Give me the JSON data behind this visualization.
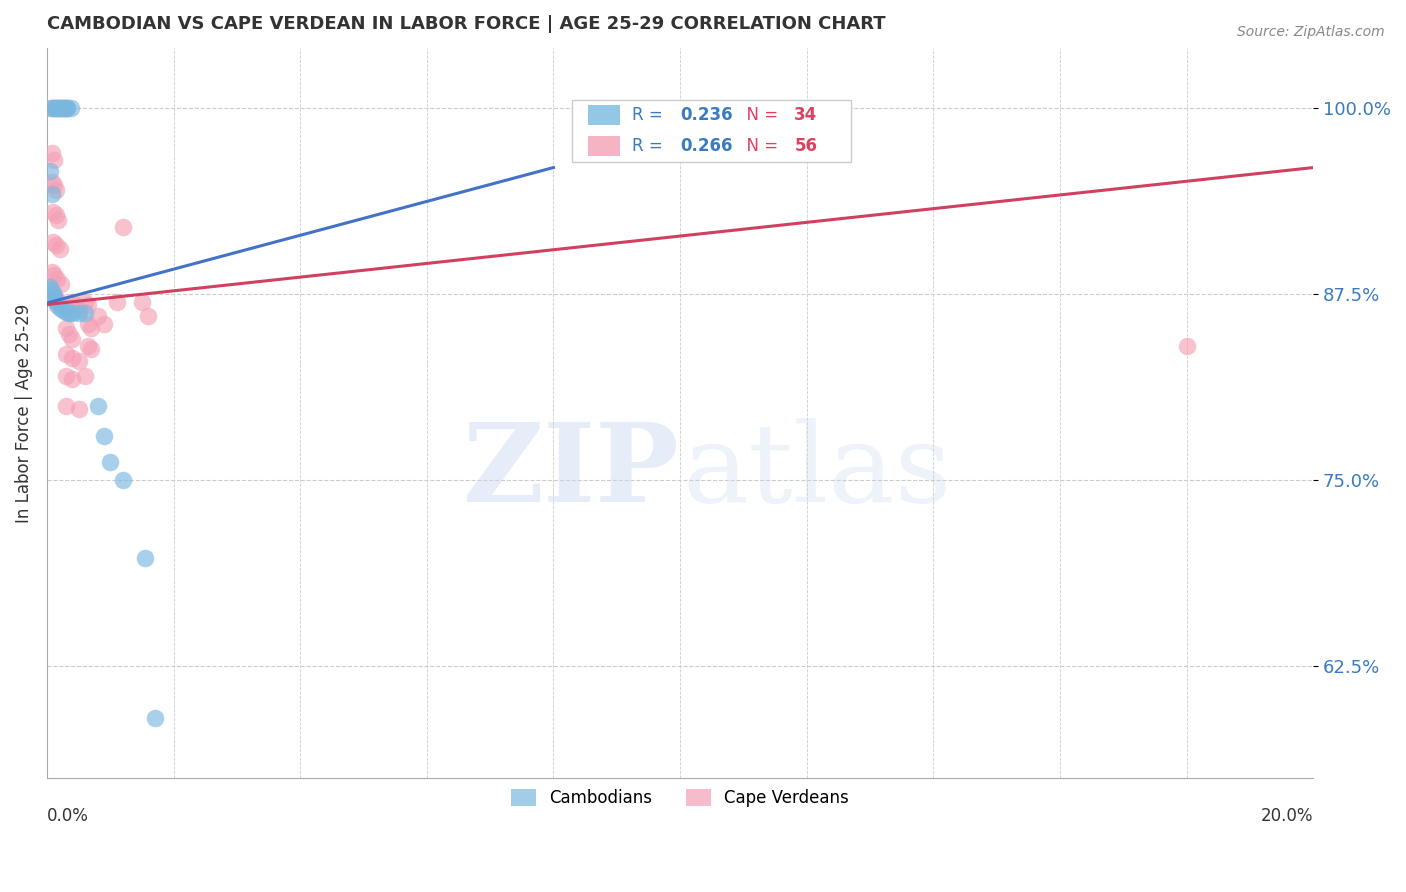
{
  "title": "CAMBODIAN VS CAPE VERDEAN IN LABOR FORCE | AGE 25-29 CORRELATION CHART",
  "source": "Source: ZipAtlas.com",
  "ylabel": "In Labor Force | Age 25-29",
  "y_ticks": [
    0.625,
    0.75,
    0.875,
    1.0
  ],
  "y_tick_labels": [
    "62.5%",
    "75.0%",
    "87.5%",
    "100.0%"
  ],
  "x_min": 0.0,
  "x_max": 0.2,
  "y_min": 0.55,
  "y_max": 1.04,
  "cambodian_color": "#7ab8e0",
  "cape_verdean_color": "#f4a0b5",
  "cambodian_line_color": "#4472c4",
  "cape_verdean_line_color": "#d04060",
  "cambodian_R": 0.236,
  "cambodian_N": 34,
  "cape_verdean_R": 0.266,
  "cape_verdean_N": 56,
  "cam_line_x0": 0.0,
  "cam_line_y0": 0.869,
  "cam_line_x1": 0.08,
  "cam_line_y1": 0.96,
  "cv_line_x0": 0.0,
  "cv_line_y0": 0.868,
  "cv_line_x1": 0.2,
  "cv_line_y1": 0.96,
  "cambodian_points": [
    [
      0.0008,
      1.0
    ],
    [
      0.0012,
      1.0
    ],
    [
      0.0014,
      1.0
    ],
    [
      0.0016,
      1.0
    ],
    [
      0.0018,
      1.0
    ],
    [
      0.002,
      1.0
    ],
    [
      0.0022,
      1.0
    ],
    [
      0.0025,
      1.0
    ],
    [
      0.0027,
      1.0
    ],
    [
      0.003,
      1.0
    ],
    [
      0.0032,
      1.0
    ],
    [
      0.0038,
      1.0
    ],
    [
      0.0005,
      0.958
    ],
    [
      0.0008,
      0.942
    ],
    [
      0.0005,
      0.88
    ],
    [
      0.0007,
      0.878
    ],
    [
      0.0009,
      0.876
    ],
    [
      0.0011,
      0.874
    ],
    [
      0.0012,
      0.872
    ],
    [
      0.0014,
      0.87
    ],
    [
      0.0016,
      0.868
    ],
    [
      0.002,
      0.866
    ],
    [
      0.0025,
      0.864
    ],
    [
      0.003,
      0.863
    ],
    [
      0.0035,
      0.862
    ],
    [
      0.004,
      0.862
    ],
    [
      0.005,
      0.862
    ],
    [
      0.006,
      0.862
    ],
    [
      0.008,
      0.8
    ],
    [
      0.009,
      0.78
    ],
    [
      0.01,
      0.762
    ],
    [
      0.012,
      0.75
    ],
    [
      0.0155,
      0.698
    ],
    [
      0.017,
      0.59
    ]
  ],
  "cape_verdean_points": [
    [
      0.0005,
      1.0
    ],
    [
      0.001,
      1.0
    ],
    [
      0.0015,
      1.0
    ],
    [
      0.002,
      1.0
    ],
    [
      0.0025,
      1.0
    ],
    [
      0.003,
      1.0
    ],
    [
      0.0032,
      1.0
    ],
    [
      0.0008,
      0.97
    ],
    [
      0.0012,
      0.965
    ],
    [
      0.0008,
      0.95
    ],
    [
      0.0012,
      0.948
    ],
    [
      0.0015,
      0.945
    ],
    [
      0.001,
      0.93
    ],
    [
      0.0015,
      0.928
    ],
    [
      0.0018,
      0.925
    ],
    [
      0.001,
      0.91
    ],
    [
      0.0015,
      0.908
    ],
    [
      0.002,
      0.905
    ],
    [
      0.0008,
      0.89
    ],
    [
      0.0012,
      0.888
    ],
    [
      0.0016,
      0.885
    ],
    [
      0.0022,
      0.882
    ],
    [
      0.0005,
      0.878
    ],
    [
      0.001,
      0.875
    ],
    [
      0.0015,
      0.872
    ],
    [
      0.002,
      0.87
    ],
    [
      0.0025,
      0.868
    ],
    [
      0.003,
      0.865
    ],
    [
      0.0035,
      0.862
    ],
    [
      0.004,
      0.87
    ],
    [
      0.0045,
      0.868
    ],
    [
      0.005,
      0.865
    ],
    [
      0.003,
      0.852
    ],
    [
      0.0035,
      0.848
    ],
    [
      0.004,
      0.845
    ],
    [
      0.003,
      0.835
    ],
    [
      0.004,
      0.832
    ],
    [
      0.003,
      0.82
    ],
    [
      0.004,
      0.818
    ],
    [
      0.003,
      0.8
    ],
    [
      0.005,
      0.798
    ],
    [
      0.006,
      0.87
    ],
    [
      0.0065,
      0.868
    ],
    [
      0.0065,
      0.855
    ],
    [
      0.007,
      0.852
    ],
    [
      0.0065,
      0.84
    ],
    [
      0.007,
      0.838
    ],
    [
      0.005,
      0.83
    ],
    [
      0.006,
      0.82
    ],
    [
      0.008,
      0.86
    ],
    [
      0.009,
      0.855
    ],
    [
      0.011,
      0.87
    ],
    [
      0.012,
      0.92
    ],
    [
      0.015,
      0.87
    ],
    [
      0.016,
      0.86
    ],
    [
      0.18,
      0.84
    ]
  ]
}
